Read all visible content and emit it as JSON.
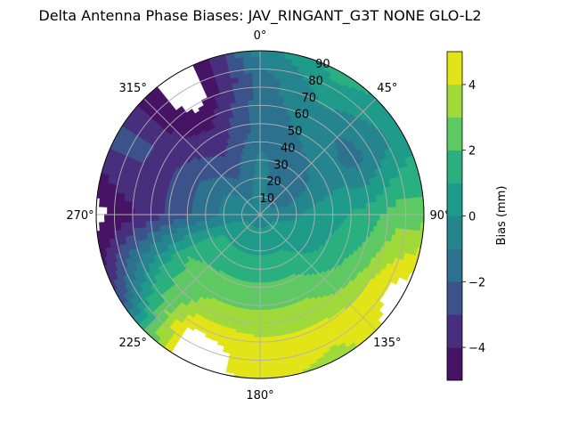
{
  "chart_data": {
    "type": "heatmap",
    "subtype": "polar-contour",
    "title": "Delta Antenna Phase Biases: JAV_RINGANT_G3T NONE GLO-L2",
    "azimuth_labels": [
      "0°",
      "45°",
      "90°",
      "135°",
      "180°",
      "225°",
      "270°",
      "315°"
    ],
    "radial_labels": [
      "10",
      "20",
      "30",
      "40",
      "50",
      "60",
      "70",
      "80",
      "90"
    ],
    "azimuth_deg": [
      0,
      30,
      60,
      90,
      120,
      150,
      180,
      210,
      240,
      270,
      300,
      330
    ],
    "zenith_deg": [
      0,
      15,
      30,
      45,
      60,
      75,
      90
    ],
    "values_mm": [
      [
        -0.5,
        -0.5,
        -0.8,
        -1.5,
        -1.5,
        -1.5,
        -0.5
      ],
      [
        -0.5,
        -1.5,
        -1.5,
        -1.0,
        -0.5,
        0.5,
        1.5
      ],
      [
        -0.5,
        -1.5,
        -1.0,
        -0.5,
        -1.5,
        -0.5,
        0.5
      ],
      [
        -0.5,
        -0.5,
        0.5,
        0.8,
        1.5,
        2.5,
        2.5
      ],
      [
        -0.5,
        0.5,
        0.5,
        1.5,
        2.5,
        4.5,
        6.0
      ],
      [
        -0.5,
        0.5,
        1.5,
        2.5,
        3.5,
        4.5,
        3.5
      ],
      [
        -0.5,
        0.5,
        1.5,
        2.5,
        3.5,
        4.5,
        4.5
      ],
      [
        -0.5,
        0.5,
        1.5,
        2.5,
        3.5,
        5.5,
        6.0
      ],
      [
        -0.5,
        0.5,
        1.5,
        2.0,
        1.5,
        0.0,
        -3.0
      ],
      [
        -0.5,
        -0.5,
        -1.5,
        -2.5,
        -3.5,
        -4.5,
        -5.5
      ],
      [
        -0.5,
        -0.5,
        -1.5,
        -2.5,
        -3.5,
        -2.5,
        -2.5
      ],
      [
        -0.5,
        -1.5,
        -2.5,
        -3.5,
        -4.5,
        -6.0,
        -6.0
      ]
    ],
    "levels": [
      -5,
      -4,
      -3,
      -2,
      -1,
      0,
      1,
      2,
      3,
      4,
      5
    ],
    "colormap": "viridis",
    "level_colors": [
      "#471365",
      "#472f7d",
      "#3b528b",
      "#2c728e",
      "#25858e",
      "#1e9b8a",
      "#2ab07f",
      "#5ec962",
      "#9fda3a",
      "#e2e418"
    ],
    "colorbar": {
      "label": "Bias (mm)",
      "ticks": [
        -4,
        -2,
        0,
        2,
        4
      ],
      "tick_labels": [
        "−4",
        "−2",
        "0",
        "2",
        "4"
      ],
      "range": [
        -5,
        5
      ]
    },
    "grid": true,
    "out_of_range_color": "#ffffff"
  }
}
